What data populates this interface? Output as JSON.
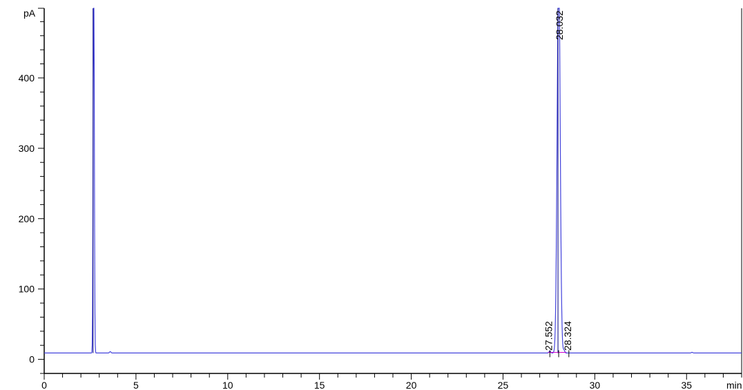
{
  "chart_data": {
    "type": "line",
    "title": "",
    "xlabel": "min",
    "ylabel": "pA",
    "xlim": [
      0,
      38
    ],
    "ylim": [
      -20,
      499
    ],
    "x_ticks": [
      0,
      5,
      10,
      15,
      20,
      25,
      30,
      35
    ],
    "x_tick_labels": [
      "0",
      "5",
      "10",
      "15",
      "20",
      "25",
      "30",
      "35"
    ],
    "x_minor_step": 1,
    "y_ticks": [
      0,
      100,
      200,
      300,
      400
    ],
    "y_tick_labels": [
      "0",
      "100",
      "200",
      "300",
      "400"
    ],
    "y_minor_step": 20,
    "grid": false,
    "baseline": 9,
    "trace_color": "#4444dd",
    "peak_color": "#000080",
    "baseline_marker_color": "#cc00cc",
    "peaks": [
      {
        "rt": 2.7,
        "height": 600,
        "label": ""
      },
      {
        "rt": 3.6,
        "height": 2,
        "label": ""
      },
      {
        "rt": 27.552,
        "height": 3,
        "label": "27.552"
      },
      {
        "rt": 28.032,
        "height": 560,
        "label": "28.032"
      },
      {
        "rt": 28.324,
        "height": 4,
        "label": "28.324"
      },
      {
        "rt": 35.3,
        "height": 1,
        "label": ""
      }
    ]
  }
}
